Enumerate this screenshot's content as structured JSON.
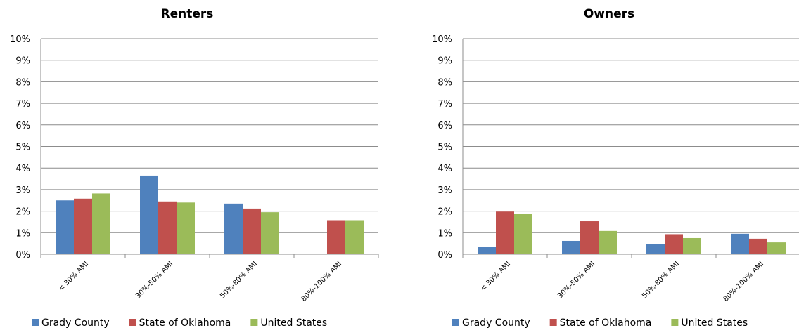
{
  "chart_data": [
    {
      "type": "bar",
      "title": "Renters",
      "categories": [
        "< 30% AMI",
        "30%-50% AMI",
        "50%-80% AMI",
        "80%-100% AMI"
      ],
      "ylim": [
        0,
        10
      ],
      "yticks": [
        "0%",
        "1%",
        "2%",
        "3%",
        "4%",
        "5%",
        "6%",
        "7%",
        "8%",
        "9%",
        "10%"
      ],
      "grid": true,
      "legend_position": "bottom",
      "series": [
        {
          "name": "Grady County",
          "color": "#4F81BD",
          "values": [
            2.5,
            3.65,
            2.35,
            0
          ]
        },
        {
          "name": "State of Oklahoma",
          "color": "#C0504D",
          "values": [
            2.58,
            2.45,
            2.12,
            1.58
          ]
        },
        {
          "name": "United States",
          "color": "#9BBB59",
          "values": [
            2.82,
            2.4,
            1.95,
            1.58
          ]
        }
      ]
    },
    {
      "type": "bar",
      "title": "Owners",
      "categories": [
        "< 30% AMI",
        "30%-50% AMI",
        "50%-80% AMI",
        "80%-100% AMI"
      ],
      "ylim": [
        0,
        10
      ],
      "yticks": [
        "0%",
        "1%",
        "2%",
        "3%",
        "4%",
        "5%",
        "6%",
        "7%",
        "8%",
        "9%",
        "10%"
      ],
      "grid": true,
      "legend_position": "bottom",
      "series": [
        {
          "name": "Grady County",
          "color": "#4F81BD",
          "values": [
            0.35,
            0.62,
            0.48,
            0.95
          ]
        },
        {
          "name": "State of Oklahoma",
          "color": "#C0504D",
          "values": [
            1.98,
            1.53,
            0.93,
            0.72
          ]
        },
        {
          "name": "United States",
          "color": "#9BBB59",
          "values": [
            1.87,
            1.08,
            0.75,
            0.55
          ]
        }
      ]
    }
  ]
}
